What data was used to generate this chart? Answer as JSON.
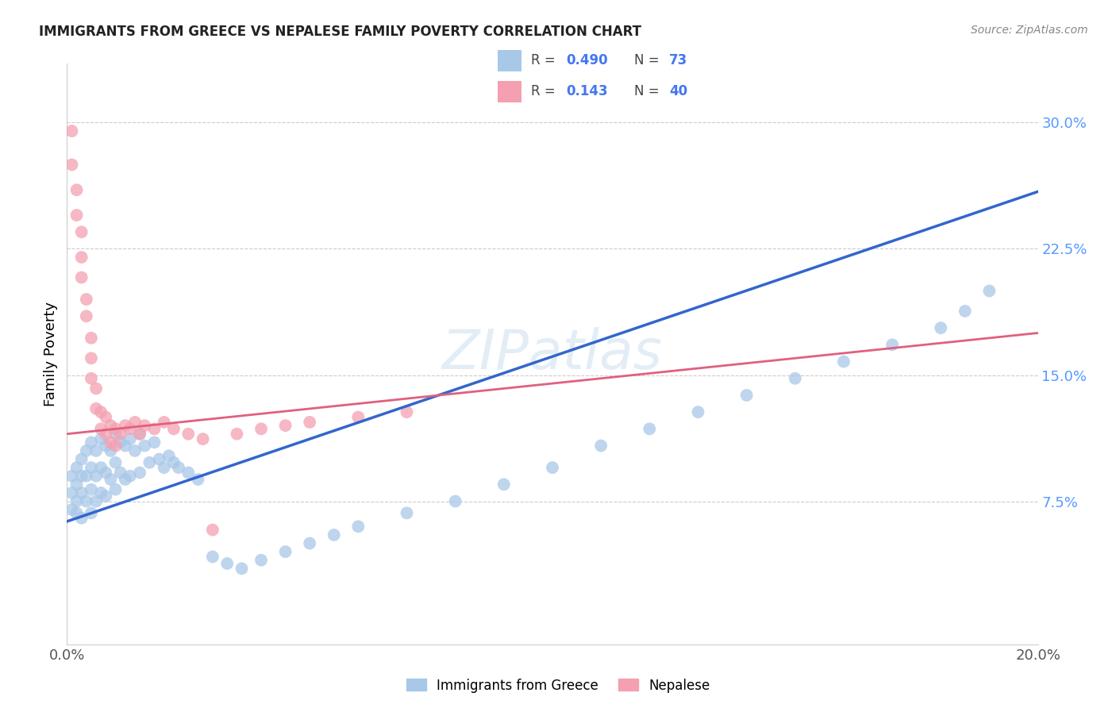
{
  "title": "IMMIGRANTS FROM GREECE VS NEPALESE FAMILY POVERTY CORRELATION CHART",
  "source": "Source: ZipAtlas.com",
  "ylabel": "Family Poverty",
  "xlim": [
    0.0,
    0.2
  ],
  "ylim": [
    -0.01,
    0.335
  ],
  "yticks": [
    0.075,
    0.15,
    0.225,
    0.3
  ],
  "ytick_labels": [
    "7.5%",
    "15.0%",
    "22.5%",
    "30.0%"
  ],
  "xticks": [
    0.0,
    0.05,
    0.1,
    0.15,
    0.2
  ],
  "xtick_labels": [
    "0.0%",
    "",
    "",
    "",
    "20.0%"
  ],
  "legend_blue_r": "0.490",
  "legend_blue_n": "73",
  "legend_pink_r": "0.143",
  "legend_pink_n": "40",
  "legend_label_blue": "Immigrants from Greece",
  "legend_label_pink": "Nepalese",
  "blue_color": "#A8C8E8",
  "pink_color": "#F4A0B0",
  "blue_line_color": "#3366CC",
  "pink_line_color": "#E06080",
  "pink_line_style": "solid",
  "blue_line_intercept": 0.063,
  "blue_line_slope": 0.98,
  "pink_line_intercept": 0.115,
  "pink_line_slope": 0.3,
  "blue_scatter_x": [
    0.001,
    0.001,
    0.001,
    0.002,
    0.002,
    0.002,
    0.002,
    0.003,
    0.003,
    0.003,
    0.003,
    0.004,
    0.004,
    0.004,
    0.005,
    0.005,
    0.005,
    0.005,
    0.006,
    0.006,
    0.006,
    0.007,
    0.007,
    0.007,
    0.008,
    0.008,
    0.008,
    0.009,
    0.009,
    0.01,
    0.01,
    0.01,
    0.011,
    0.011,
    0.012,
    0.012,
    0.013,
    0.013,
    0.014,
    0.015,
    0.015,
    0.016,
    0.017,
    0.018,
    0.019,
    0.02,
    0.021,
    0.022,
    0.023,
    0.025,
    0.027,
    0.03,
    0.033,
    0.036,
    0.04,
    0.045,
    0.05,
    0.055,
    0.06,
    0.07,
    0.08,
    0.09,
    0.1,
    0.11,
    0.12,
    0.13,
    0.14,
    0.15,
    0.16,
    0.17,
    0.18,
    0.185,
    0.19
  ],
  "blue_scatter_y": [
    0.09,
    0.08,
    0.07,
    0.095,
    0.085,
    0.075,
    0.068,
    0.1,
    0.09,
    0.08,
    0.065,
    0.105,
    0.09,
    0.075,
    0.11,
    0.095,
    0.082,
    0.068,
    0.105,
    0.09,
    0.075,
    0.112,
    0.095,
    0.08,
    0.108,
    0.092,
    0.078,
    0.105,
    0.088,
    0.115,
    0.098,
    0.082,
    0.11,
    0.092,
    0.108,
    0.088,
    0.112,
    0.09,
    0.105,
    0.115,
    0.092,
    0.108,
    0.098,
    0.11,
    0.1,
    0.095,
    0.102,
    0.098,
    0.095,
    0.092,
    0.088,
    0.042,
    0.038,
    0.035,
    0.04,
    0.045,
    0.05,
    0.055,
    0.06,
    0.068,
    0.075,
    0.085,
    0.095,
    0.108,
    0.118,
    0.128,
    0.138,
    0.148,
    0.158,
    0.168,
    0.178,
    0.188,
    0.2
  ],
  "pink_scatter_x": [
    0.001,
    0.001,
    0.002,
    0.002,
    0.003,
    0.003,
    0.003,
    0.004,
    0.004,
    0.005,
    0.005,
    0.005,
    0.006,
    0.006,
    0.007,
    0.007,
    0.008,
    0.008,
    0.009,
    0.009,
    0.01,
    0.01,
    0.011,
    0.012,
    0.013,
    0.014,
    0.015,
    0.016,
    0.018,
    0.02,
    0.022,
    0.025,
    0.028,
    0.03,
    0.035,
    0.04,
    0.045,
    0.05,
    0.06,
    0.07
  ],
  "pink_scatter_y": [
    0.295,
    0.275,
    0.26,
    0.245,
    0.235,
    0.22,
    0.208,
    0.195,
    0.185,
    0.172,
    0.16,
    0.148,
    0.142,
    0.13,
    0.128,
    0.118,
    0.125,
    0.115,
    0.12,
    0.11,
    0.118,
    0.108,
    0.115,
    0.12,
    0.118,
    0.122,
    0.115,
    0.12,
    0.118,
    0.122,
    0.118,
    0.115,
    0.112,
    0.058,
    0.115,
    0.118,
    0.12,
    0.122,
    0.125,
    0.128
  ]
}
